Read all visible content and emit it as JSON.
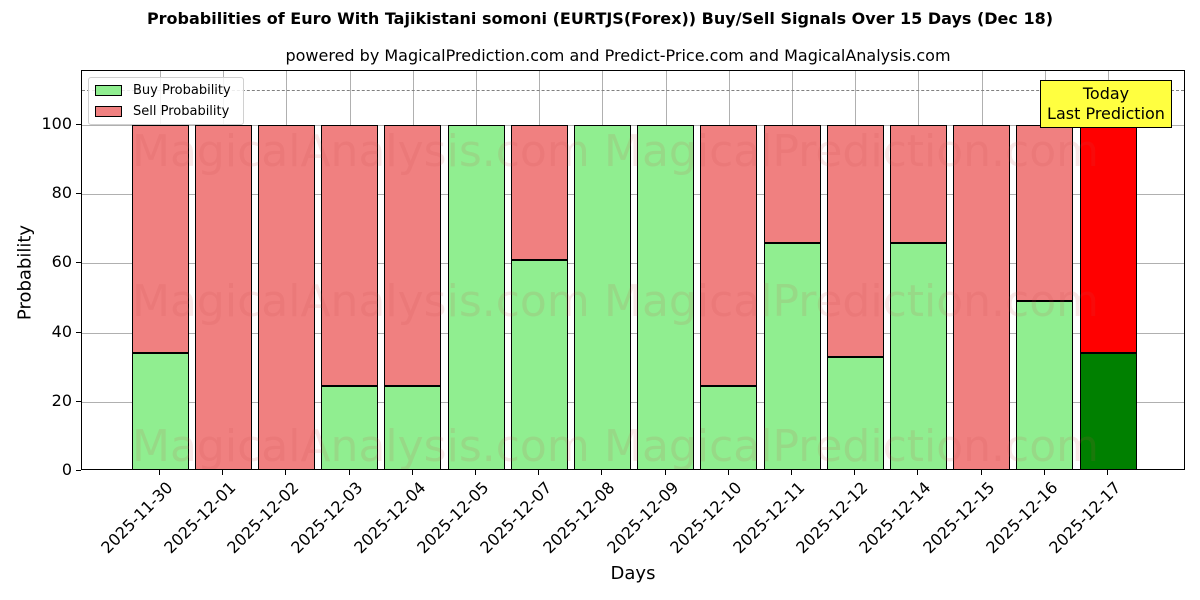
{
  "title": "Probabilities of Euro With Tajikistani somoni (EURTJS(Forex)) Buy/Sell Signals Over 15 Days (Dec 18)",
  "subtitle": "powered by MagicalPrediction.com and Predict-Price.com and MagicalAnalysis.com",
  "legend": {
    "buy_label": "Buy Probability",
    "sell_label": "Sell Probability"
  },
  "annotation": {
    "line1": "Today",
    "line2": "Last Prediction"
  },
  "watermarks": [
    "MagicalAnalysis.com",
    "MagicalPrediction.com"
  ],
  "colors": {
    "buy": "#90ee90",
    "sell": "#f08080",
    "today_buy": "#008000",
    "today_sell": "#ff0000",
    "annotation_bg": "#ffff40",
    "threshold_line": "#808080"
  },
  "chart_data": {
    "type": "bar",
    "stacked": true,
    "title": "Probabilities of Euro With Tajikistani somoni (EURTJS(Forex)) Buy/Sell Signals Over 15 Days (Dec 18)",
    "subtitle": "powered by MagicalPrediction.com and Predict-Price.com and MagicalAnalysis.com",
    "xlabel": "Days",
    "ylabel": "Probability",
    "ylim": [
      0,
      115
    ],
    "yticks": [
      0,
      20,
      40,
      60,
      80,
      100
    ],
    "grid": true,
    "legend_position": "upper left",
    "threshold_line": 110,
    "categories": [
      "2025-11-30",
      "2025-12-01",
      "2025-12-02",
      "2025-12-03",
      "2025-12-04",
      "2025-12-05",
      "2025-12-07",
      "2025-12-08",
      "2025-12-09",
      "2025-12-10",
      "2025-12-11",
      "2025-12-12",
      "2025-12-14",
      "2025-12-15",
      "2025-12-16",
      "2025-12-17"
    ],
    "series": [
      {
        "name": "Buy Probability",
        "values": [
          34,
          0,
          0,
          24.5,
          24.5,
          100,
          61,
          100,
          100,
          24.5,
          66,
          33,
          66,
          0,
          49,
          34
        ]
      },
      {
        "name": "Sell Probability",
        "values": [
          66,
          100,
          100,
          75.5,
          75.5,
          0,
          39,
          0,
          0,
          75.5,
          34,
          67,
          34,
          100,
          51,
          66
        ]
      }
    ],
    "annotations": [
      {
        "text": "Today\nLast Prediction",
        "x": "2025-12-17",
        "y": 105
      }
    ]
  }
}
